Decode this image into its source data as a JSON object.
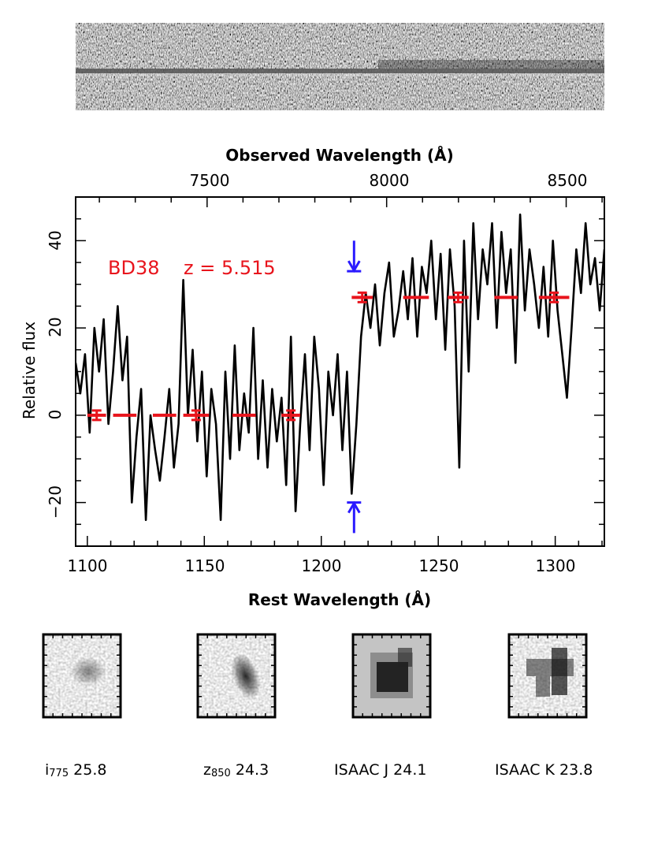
{
  "chart_data": {
    "type": "line",
    "object_label": "BD38",
    "redshift_label": "z = 5.515",
    "xlabel": "Rest Wavelength (Å)",
    "x2label": "Observed Wavelength (Å)",
    "ylabel": "Relative flux",
    "xlim": [
      1095,
      1321
    ],
    "ylim": [
      -30,
      50
    ],
    "xticks": [
      1100,
      1150,
      1200,
      1250,
      1300
    ],
    "x2ticks": [
      7500,
      8000,
      8500
    ],
    "yticks": [
      -20,
      0,
      20,
      40
    ],
    "tick_labels": {
      "x": [
        "1100",
        "1150",
        "1200",
        "1250",
        "1300"
      ],
      "x2": [
        "7500",
        "8000",
        "8500"
      ],
      "y": [
        "−20",
        "0",
        "20",
        "40"
      ]
    },
    "break_wavelength": 1214,
    "break_markers": [
      {
        "direction": "down",
        "x": 1214,
        "y_from": 40,
        "y_to": 33
      },
      {
        "direction": "up",
        "x": 1214,
        "y_from": -27,
        "y_to": -20
      }
    ],
    "binned_flux": [
      {
        "x0": 1100,
        "x1": 1108,
        "y": 0,
        "err": 1.2
      },
      {
        "x0": 1111,
        "x1": 1121,
        "y": 0,
        "err": 0
      },
      {
        "x0": 1128,
        "x1": 1138,
        "y": 0,
        "err": 0
      },
      {
        "x0": 1141,
        "x1": 1152,
        "y": 0,
        "err": 1.2
      },
      {
        "x0": 1162,
        "x1": 1172,
        "y": 0,
        "err": 0
      },
      {
        "x0": 1183,
        "x1": 1191,
        "y": 0,
        "err": 1.2
      },
      {
        "x0": 1213,
        "x1": 1222,
        "y": 27,
        "err": 1.2
      },
      {
        "x0": 1235,
        "x1": 1246,
        "y": 27,
        "err": 0
      },
      {
        "x0": 1254,
        "x1": 1263,
        "y": 27,
        "err": 1.2
      },
      {
        "x0": 1274,
        "x1": 1284,
        "y": 27,
        "err": 0
      },
      {
        "x0": 1293,
        "x1": 1306,
        "y": 27,
        "err": 1.2
      }
    ],
    "spectrum": {
      "x": [
        1095,
        1097,
        1099,
        1101,
        1103,
        1105,
        1107,
        1109,
        1111,
        1113,
        1115,
        1117,
        1119,
        1121,
        1123,
        1125,
        1127,
        1129,
        1131,
        1133,
        1135,
        1137,
        1139,
        1141,
        1143,
        1145,
        1147,
        1149,
        1151,
        1153,
        1155,
        1157,
        1159,
        1161,
        1163,
        1165,
        1167,
        1169,
        1171,
        1173,
        1175,
        1177,
        1179,
        1181,
        1183,
        1185,
        1187,
        1189,
        1191,
        1193,
        1195,
        1197,
        1199,
        1201,
        1203,
        1205,
        1207,
        1209,
        1211,
        1213,
        1215,
        1217,
        1219,
        1221,
        1223,
        1225,
        1227,
        1229,
        1231,
        1233,
        1235,
        1237,
        1239,
        1241,
        1243,
        1245,
        1247,
        1249,
        1251,
        1253,
        1255,
        1257,
        1259,
        1261,
        1263,
        1265,
        1267,
        1269,
        1271,
        1273,
        1275,
        1277,
        1279,
        1281,
        1283,
        1285,
        1287,
        1289,
        1291,
        1293,
        1295,
        1297,
        1299,
        1301,
        1303,
        1305,
        1307,
        1309,
        1311,
        1313,
        1315,
        1317,
        1319,
        1321
      ],
      "y": [
        12,
        5,
        14,
        -4,
        20,
        10,
        22,
        -2,
        10,
        25,
        8,
        18,
        -20,
        -5,
        6,
        -24,
        0,
        -8,
        -15,
        -5,
        6,
        -12,
        -2,
        31,
        0,
        15,
        -6,
        10,
        -14,
        6,
        -2,
        -24,
        10,
        -10,
        16,
        -8,
        5,
        -4,
        20,
        -10,
        8,
        -12,
        6,
        -6,
        4,
        -16,
        18,
        -22,
        -2,
        14,
        -8,
        18,
        6,
        -16,
        10,
        0,
        14,
        -8,
        10,
        -18,
        -2,
        18,
        28,
        20,
        30,
        16,
        28,
        35,
        18,
        24,
        33,
        22,
        36,
        18,
        34,
        28,
        40,
        22,
        37,
        15,
        38,
        25,
        -12,
        40,
        10,
        44,
        22,
        38,
        30,
        44,
        20,
        42,
        28,
        38,
        12,
        46,
        24,
        38,
        30,
        20,
        34,
        18,
        40,
        24,
        14,
        4,
        20,
        38,
        28,
        44,
        30,
        36,
        24,
        38
      ]
    }
  },
  "spectrum_2d_image": {
    "name": "2D sky-subtracted spectrum"
  },
  "stamps": [
    {
      "band": "i",
      "sub": "775",
      "value": "25.8"
    },
    {
      "band": "z",
      "sub": "850",
      "value": "24.3"
    },
    {
      "band": "ISAAC J",
      "sub": "",
      "value": "24.1"
    },
    {
      "band": "ISAAC K",
      "sub": "",
      "value": "23.8"
    }
  ],
  "colors": {
    "spectrum": "#000000",
    "binned": "#e8141c",
    "label": "#e8141c",
    "arrows": "#2a1aff"
  }
}
